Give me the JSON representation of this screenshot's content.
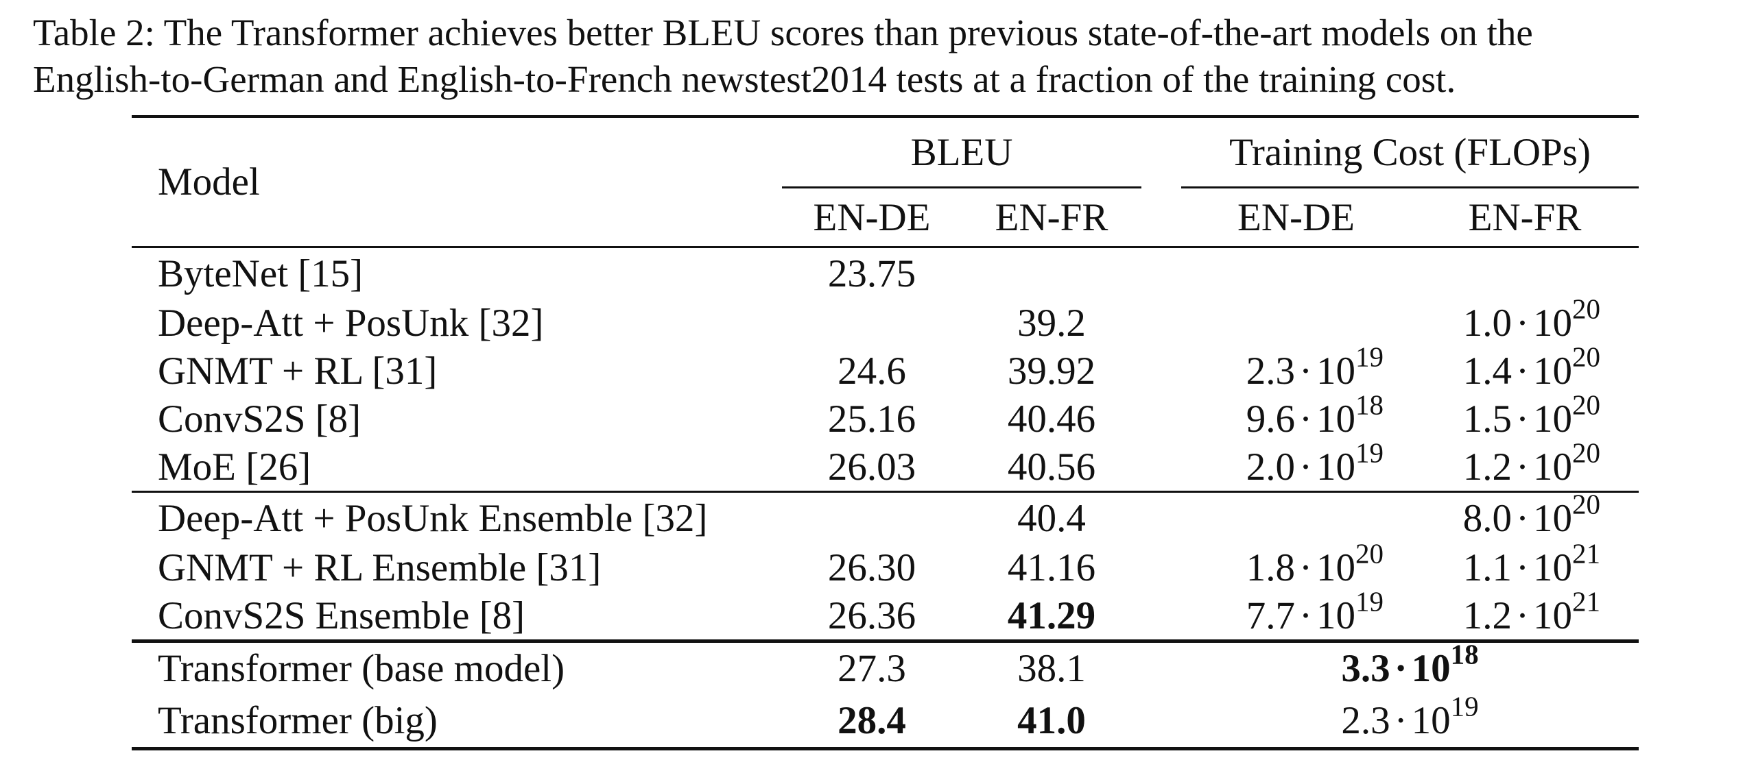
{
  "caption": {
    "line1": "Table 2: The Transformer achieves better BLEU scores than previous state-of-the-art models on the",
    "line2": "English-to-German and English-to-French newstest2014 tests at a fraction of the training cost."
  },
  "table": {
    "headers": {
      "model": "Model",
      "bleu": "BLEU",
      "training_cost": "Training Cost (FLOPs)",
      "bleu_en_de": "EN-DE",
      "bleu_en_fr": "EN-FR",
      "tc_en_de": "EN-DE",
      "tc_en_fr": "EN-FR"
    },
    "rows": [
      {
        "model": "ByteNet [15]",
        "bleu_en_de": "23.75",
        "bleu_en_fr": "",
        "tc_en_de": {
          "m": "",
          "e": ""
        },
        "tc_en_fr": {
          "m": "",
          "e": ""
        }
      },
      {
        "model": "Deep-Att + PosUnk [32]",
        "bleu_en_de": "",
        "bleu_en_fr": "39.2",
        "tc_en_de": {
          "m": "",
          "e": ""
        },
        "tc_en_fr": {
          "m": "1.0",
          "e": "20"
        }
      },
      {
        "model": "GNMT + RL [31]",
        "bleu_en_de": "24.6",
        "bleu_en_fr": "39.92",
        "tc_en_de": {
          "m": "2.3",
          "e": "19"
        },
        "tc_en_fr": {
          "m": "1.4",
          "e": "20"
        }
      },
      {
        "model": "ConvS2S [8]",
        "bleu_en_de": "25.16",
        "bleu_en_fr": "40.46",
        "tc_en_de": {
          "m": "9.6",
          "e": "18"
        },
        "tc_en_fr": {
          "m": "1.5",
          "e": "20"
        }
      },
      {
        "model": "MoE [26]",
        "bleu_en_de": "26.03",
        "bleu_en_fr": "40.56",
        "tc_en_de": {
          "m": "2.0",
          "e": "19"
        },
        "tc_en_fr": {
          "m": "1.2",
          "e": "20"
        }
      },
      {
        "model": "Deep-Att + PosUnk Ensemble [32]",
        "bleu_en_de": "",
        "bleu_en_fr": "40.4",
        "tc_en_de": {
          "m": "",
          "e": ""
        },
        "tc_en_fr": {
          "m": "8.0",
          "e": "20"
        }
      },
      {
        "model": "GNMT + RL Ensemble [31]",
        "bleu_en_de": "26.30",
        "bleu_en_fr": "41.16",
        "tc_en_de": {
          "m": "1.8",
          "e": "20"
        },
        "tc_en_fr": {
          "m": "1.1",
          "e": "21"
        }
      },
      {
        "model": "ConvS2S Ensemble [8]",
        "bleu_en_de": "26.36",
        "bleu_en_fr": "41.29",
        "tc_en_de": {
          "m": "7.7",
          "e": "19"
        },
        "tc_en_fr": {
          "m": "1.2",
          "e": "21"
        }
      },
      {
        "model": "Transformer (base model)",
        "bleu_en_de": "27.3",
        "bleu_en_fr": "38.1",
        "tc_shared": {
          "m": "3.3",
          "e": "18"
        }
      },
      {
        "model": "Transformer (big)",
        "bleu_en_de": "28.4",
        "bleu_en_fr": "41.0",
        "tc_shared": {
          "m": "2.3",
          "e": "19"
        }
      }
    ],
    "base": "10",
    "dot": "·"
  }
}
